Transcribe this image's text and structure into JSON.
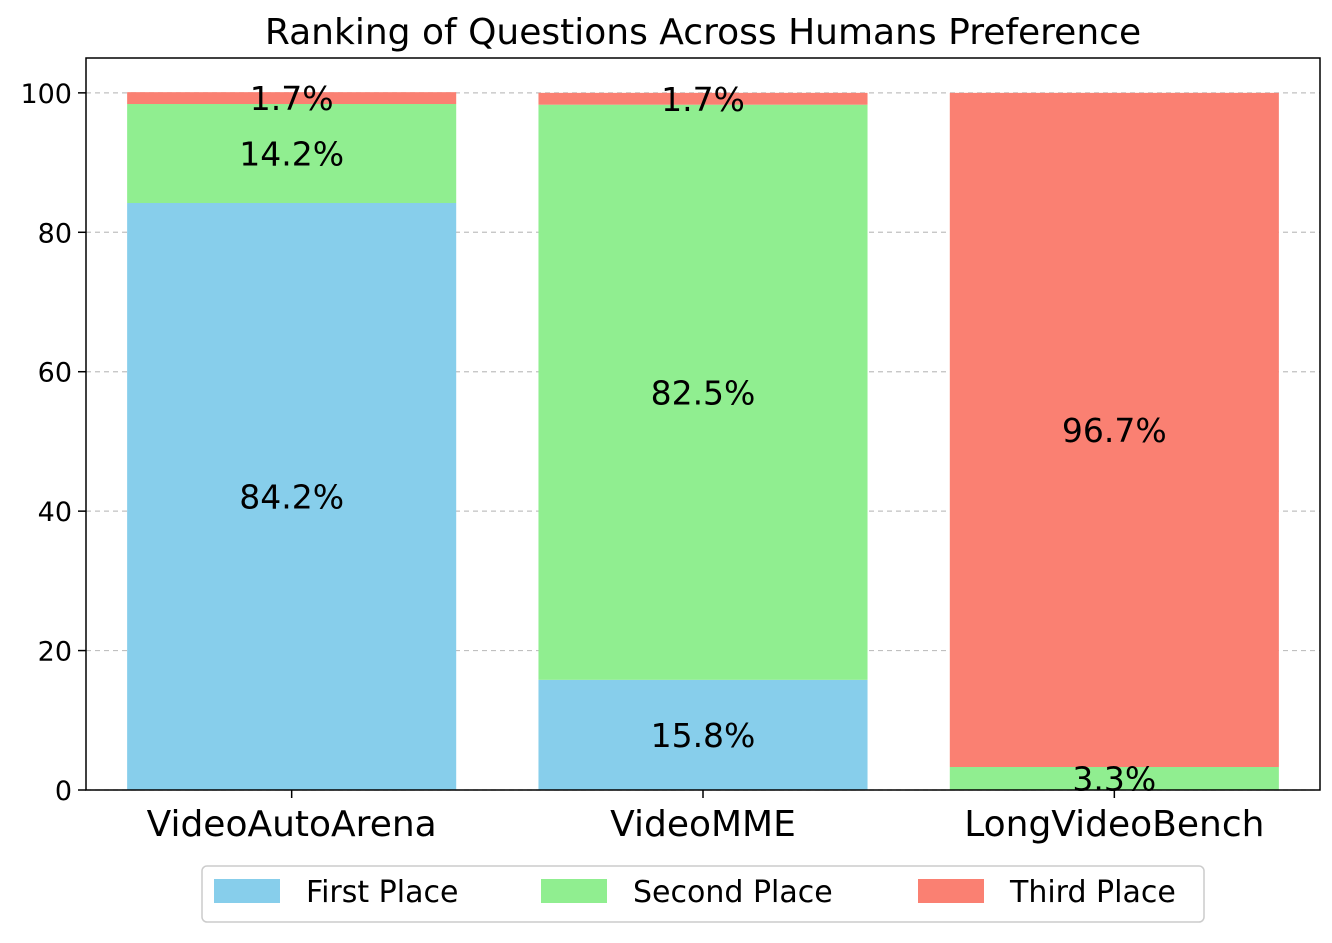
{
  "chart_data": {
    "type": "bar",
    "stacked": true,
    "title": "Ranking of Questions Across Humans Preference",
    "xlabel": "",
    "ylabel": "",
    "categories": [
      "VideoAutoArena",
      "VideoMME",
      "LongVideoBench"
    ],
    "series": [
      {
        "name": "First Place",
        "color": "#87CEEB",
        "values": [
          84.2,
          15.8,
          0
        ],
        "labels": [
          "84.2%",
          "15.8%",
          ""
        ]
      },
      {
        "name": "Second Place",
        "color": "#90EE90",
        "values": [
          14.2,
          82.5,
          3.3
        ],
        "labels": [
          "14.2%",
          "82.5%",
          "3.3%"
        ]
      },
      {
        "name": "Third Place",
        "color": "#FA8072",
        "values": [
          1.7,
          1.7,
          96.7
        ],
        "labels": [
          "1.7%",
          "1.7%",
          "96.7%"
        ]
      }
    ],
    "ylim": [
      0,
      105
    ],
    "yticks": [
      0,
      20,
      40,
      60,
      80,
      100
    ],
    "grid": "y-dashed",
    "legend_position": "bottom-center"
  }
}
